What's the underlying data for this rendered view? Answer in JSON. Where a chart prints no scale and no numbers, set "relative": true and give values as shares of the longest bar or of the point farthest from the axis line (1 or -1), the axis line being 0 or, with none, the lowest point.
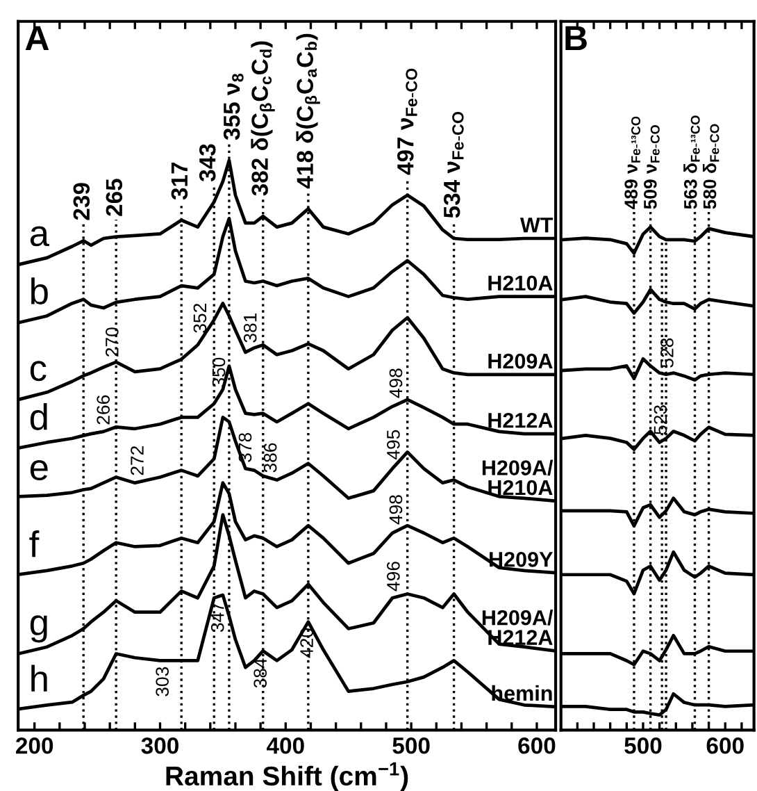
{
  "chart_data": [
    {
      "type": "line",
      "title": "A",
      "xlabel": "Raman Shift (cm$^{−1}$)",
      "relative": true,
      "line_style": "solid",
      "x": [
        187,
        210,
        230,
        239,
        245,
        255,
        265,
        280,
        300,
        317,
        330,
        343,
        350,
        355,
        360,
        368,
        375,
        382,
        393,
        405,
        418,
        430,
        450,
        470,
        485,
        497,
        510,
        525,
        534,
        545,
        570,
        590,
        615
      ],
      "series": [
        {
          "name": "WT",
          "color": "#000000",
          "values": [
            0.817,
            0.829,
            0.849,
            0.859,
            0.851,
            0.863,
            0.866,
            0.868,
            0.871,
            0.895,
            0.883,
            0.927,
            0.963,
            1.0,
            0.939,
            0.89,
            0.89,
            0.902,
            0.883,
            0.89,
            0.915,
            0.883,
            0.871,
            0.89,
            0.922,
            0.939,
            0.92,
            0.878,
            0.863,
            0.861,
            0.861,
            0.863,
            0.863
          ]
        },
        {
          "name": "H210A",
          "color": "#000000",
          "values": [
            0.715,
            0.727,
            0.749,
            0.756,
            0.746,
            0.741,
            0.751,
            0.756,
            0.761,
            0.78,
            0.776,
            0.8,
            0.866,
            0.898,
            0.841,
            0.788,
            0.785,
            0.788,
            0.78,
            0.788,
            0.793,
            0.776,
            0.761,
            0.776,
            0.805,
            0.824,
            0.8,
            0.763,
            0.759,
            0.756,
            0.761,
            0.761,
            0.761
          ]
        },
        {
          "name": "H209A",
          "color": "#000000",
          "values": [
            0.58,
            0.593,
            0.612,
            0.622,
            0.627,
            0.637,
            0.646,
            0.629,
            0.634,
            0.651,
            0.676,
            0.72,
            0.749,
            0.727,
            0.702,
            0.663,
            0.671,
            0.676,
            0.659,
            0.666,
            0.678,
            0.666,
            0.634,
            0.659,
            0.702,
            0.724,
            0.688,
            0.634,
            0.627,
            0.624,
            0.624,
            0.624,
            0.624
          ]
        },
        {
          "name": "H212A",
          "color": "#000000",
          "values": [
            0.495,
            0.505,
            0.512,
            0.517,
            0.52,
            0.524,
            0.532,
            0.529,
            0.537,
            0.549,
            0.549,
            0.573,
            0.598,
            0.639,
            0.598,
            0.556,
            0.554,
            0.556,
            0.541,
            0.556,
            0.573,
            0.556,
            0.529,
            0.549,
            0.568,
            0.58,
            0.566,
            0.549,
            0.537,
            0.537,
            0.524,
            0.52,
            0.52
          ]
        },
        {
          "name": "H209A/\nH210A",
          "color": "#000000",
          "values": [
            0.41,
            0.412,
            0.417,
            0.422,
            0.424,
            0.434,
            0.444,
            0.434,
            0.444,
            0.456,
            0.446,
            0.476,
            0.549,
            0.541,
            0.507,
            0.459,
            0.456,
            0.446,
            0.439,
            0.451,
            0.468,
            0.446,
            0.407,
            0.42,
            0.459,
            0.488,
            0.459,
            0.434,
            0.439,
            0.427,
            0.41,
            0.407,
            0.402
          ]
        },
        {
          "name": "H209Y",
          "color": "#000000",
          "values": [
            0.273,
            0.28,
            0.288,
            0.293,
            0.3,
            0.315,
            0.329,
            0.322,
            0.324,
            0.337,
            0.329,
            0.366,
            0.434,
            0.415,
            0.366,
            0.334,
            0.341,
            0.337,
            0.322,
            0.334,
            0.359,
            0.337,
            0.293,
            0.31,
            0.346,
            0.359,
            0.346,
            0.329,
            0.337,
            0.322,
            0.285,
            0.28,
            0.276
          ]
        },
        {
          "name": "H209A/\nH212A",
          "color": "#000000",
          "values": [
            0.134,
            0.146,
            0.166,
            0.178,
            0.19,
            0.207,
            0.227,
            0.207,
            0.207,
            0.244,
            0.232,
            0.288,
            0.378,
            0.341,
            0.298,
            0.232,
            0.244,
            0.239,
            0.215,
            0.227,
            0.256,
            0.224,
            0.178,
            0.188,
            0.232,
            0.239,
            0.232,
            0.215,
            0.239,
            0.207,
            0.151,
            0.146,
            0.139
          ]
        },
        {
          "name": "hemin",
          "color": "#000000",
          "values": [
            0.037,
            0.044,
            0.049,
            0.061,
            0.068,
            0.09,
            0.134,
            0.127,
            0.122,
            0.122,
            0.122,
            0.232,
            0.237,
            0.2,
            0.159,
            0.11,
            0.122,
            0.139,
            0.122,
            0.141,
            0.19,
            0.141,
            0.068,
            0.073,
            0.08,
            0.085,
            0.093,
            0.11,
            0.122,
            0.102,
            0.054,
            0.044,
            0.041
          ]
        }
      ],
      "xlim": [
        187,
        615
      ],
      "xticks": [
        200,
        {
          "value": 220,
          "label": null
        },
        {
          "value": 240,
          "label": null
        },
        {
          "value": 260,
          "label": null
        },
        {
          "value": 280,
          "label": null
        },
        300,
        {
          "value": 320,
          "label": null
        },
        {
          "value": 340,
          "label": null
        },
        {
          "value": 360,
          "label": null
        },
        {
          "value": 380,
          "label": null
        },
        400,
        {
          "value": 420,
          "label": null
        },
        {
          "value": 440,
          "label": null
        },
        {
          "value": 460,
          "label": null
        },
        {
          "value": 480,
          "label": null
        },
        500,
        {
          "value": 520,
          "label": null
        },
        {
          "value": 540,
          "label": null
        },
        {
          "value": 560,
          "label": null
        },
        {
          "value": 580,
          "label": null
        },
        600
      ],
      "ref_lines": [
        {
          "axis": "x",
          "value": 239,
          "label": "239",
          "line_style": "dotted"
        },
        {
          "axis": "x",
          "value": 265,
          "label": "265",
          "line_style": "dotted"
        },
        {
          "axis": "x",
          "value": 317,
          "label": "317",
          "line_style": "dotted"
        },
        {
          "axis": "x",
          "value": 343,
          "label": "343",
          "line_style": "dotted"
        },
        {
          "axis": "x",
          "value": 355,
          "label": "355 ν$_{8}$",
          "line_style": "dotted"
        },
        {
          "axis": "x",
          "value": 382,
          "label": "382 δ(C$_{β}$C$_{c}$C$_{d}$)",
          "line_style": "dotted"
        },
        {
          "axis": "x",
          "value": 418,
          "label": "418 δ(C$_{β}$C$_{a}$C$_{b}$)",
          "line_style": "dotted"
        },
        {
          "axis": "x",
          "value": 497,
          "label": "497 ν$_{Fe-CO}$",
          "line_style": "dotted"
        },
        {
          "axis": "x",
          "value": 534,
          "label": "534 ν$_{Fe-CO}$",
          "line_style": "dotted"
        }
      ],
      "annotations": [
        "a",
        "b",
        "c",
        "d",
        "e",
        "f",
        "g",
        "h",
        {
          "text": "352",
          "x": 333,
          "y": 0.686
        },
        {
          "text": "381",
          "x": 373,
          "y": 0.669
        },
        {
          "text": "270",
          "x": 263,
          "y": 0.644
        },
        {
          "text": "350",
          "x": 348,
          "y": 0.591
        },
        {
          "text": "498",
          "x": 489,
          "y": 0.572
        },
        {
          "text": "266",
          "x": 256,
          "y": 0.525
        },
        {
          "text": "378",
          "x": 369,
          "y": 0.459
        },
        {
          "text": "386",
          "x": 389,
          "y": 0.441
        },
        {
          "text": "272",
          "x": 283,
          "y": 0.436
        },
        {
          "text": "495",
          "x": 487,
          "y": 0.464
        },
        {
          "text": "498",
          "x": 489,
          "y": 0.35
        },
        {
          "text": "496",
          "x": 487,
          "y": 0.233
        },
        {
          "text": "303",
          "x": 303,
          "y": 0.122
        },
        {
          "text": "347",
          "x": 347,
          "y": 0.235
        },
        {
          "text": "384",
          "x": 381,
          "y": 0.137
        },
        {
          "text": "420",
          "x": 418,
          "y": 0.19
        }
      ]
    },
    {
      "type": "line",
      "title": "B",
      "relative": true,
      "line_style": "solid",
      "x": [
        403,
        430,
        460,
        480,
        489,
        500,
        509,
        520,
        528,
        537,
        550,
        563,
        570,
        580,
        600,
        635
      ],
      "series": [
        {
          "color": "#000000",
          "values": [
            0.975,
            0.978,
            0.975,
            0.967,
            0.948,
            0.986,
            1.0,
            0.981,
            0.975,
            0.975,
            0.975,
            0.972,
            0.981,
            0.997,
            0.989,
            0.981
          ]
        },
        {
          "color": "#000000",
          "values": [
            0.856,
            0.862,
            0.851,
            0.848,
            0.829,
            0.851,
            0.876,
            0.856,
            0.851,
            0.848,
            0.848,
            0.837,
            0.848,
            0.856,
            0.851,
            0.843
          ]
        },
        {
          "color": "#000000",
          "values": [
            0.715,
            0.718,
            0.718,
            0.724,
            0.699,
            0.738,
            0.724,
            0.71,
            0.707,
            0.71,
            0.704,
            0.696,
            0.704,
            0.707,
            0.71,
            0.707
          ]
        },
        {
          "color": "#000000",
          "values": [
            0.58,
            0.586,
            0.58,
            0.572,
            0.558,
            0.58,
            0.594,
            0.572,
            0.58,
            0.594,
            0.586,
            0.575,
            0.588,
            0.602,
            0.588,
            0.586
          ]
        },
        {
          "color": "#000000",
          "values": [
            0.436,
            0.436,
            0.436,
            0.434,
            0.406,
            0.442,
            0.448,
            0.423,
            0.436,
            0.461,
            0.434,
            0.428,
            0.434,
            0.439,
            0.434,
            0.431
          ]
        },
        {
          "color": "#000000",
          "values": [
            0.309,
            0.309,
            0.309,
            0.296,
            0.271,
            0.318,
            0.326,
            0.298,
            0.318,
            0.354,
            0.318,
            0.304,
            0.312,
            0.326,
            0.312,
            0.309
          ]
        },
        {
          "color": "#000000",
          "values": [
            0.152,
            0.152,
            0.152,
            0.138,
            0.13,
            0.157,
            0.152,
            0.138,
            0.16,
            0.188,
            0.152,
            0.152,
            0.157,
            0.166,
            0.157,
            0.157
          ]
        },
        {
          "color": "#000000",
          "values": [
            0.047,
            0.047,
            0.041,
            0.041,
            0.036,
            0.036,
            0.033,
            0.03,
            0.041,
            0.072,
            0.055,
            0.05,
            0.05,
            0.05,
            0.047,
            0.05
          ]
        }
      ],
      "xlim": [
        400,
        635
      ],
      "xticks": [
        {
          "value": 420,
          "label": null
        },
        {
          "value": 440,
          "label": null
        },
        {
          "value": 460,
          "label": null
        },
        {
          "value": 480,
          "label": null
        },
        500,
        {
          "value": 520,
          "label": null
        },
        {
          "value": 540,
          "label": null
        },
        {
          "value": 560,
          "label": null
        },
        {
          "value": 580,
          "label": null
        },
        600,
        {
          "value": 620,
          "label": null
        }
      ],
      "ref_lines": [
        {
          "axis": "x",
          "value": 489,
          "label": "489 ν$_{Fe-¹³CO}$",
          "line_style": "dotted"
        },
        {
          "axis": "x",
          "value": 509,
          "label": "509 ν$_{Fe-CO}$",
          "line_style": "dotted"
        },
        {
          "axis": "x",
          "value": 563,
          "label": "563 δ$_{Fe-¹³CO}$",
          "line_style": "dotted"
        },
        {
          "axis": "x",
          "value": 580,
          "label": "580 δ$_{Fe-CO}$",
          "line_style": "dotted"
        },
        {
          "axis": "x",
          "value": 523,
          "line_style": "dotted"
        },
        {
          "axis": "x",
          "value": 528,
          "line_style": "dotted"
        }
      ],
      "annotations": [
        {
          "text": "523",
          "x": 523,
          "y": 0.575
        },
        {
          "text": "528",
          "x": 531,
          "y": 0.708
        }
      ]
    }
  ]
}
